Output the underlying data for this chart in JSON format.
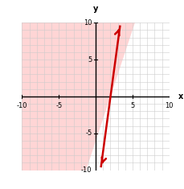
{
  "xlim": [
    -10,
    10
  ],
  "ylim": [
    -10,
    10
  ],
  "xticks": [
    -10,
    -5,
    0,
    5,
    10
  ],
  "yticks": [
    -10,
    -5,
    0,
    5,
    10
  ],
  "line_slope": 3,
  "line_intercept": -6,
  "line_color": "#cc0000",
  "shade_color": "#ffb3b3",
  "shade_alpha": 0.55,
  "xlabel": "x",
  "ylabel": "y",
  "figsize": [
    2.29,
    2.35
  ],
  "dpi": 100
}
